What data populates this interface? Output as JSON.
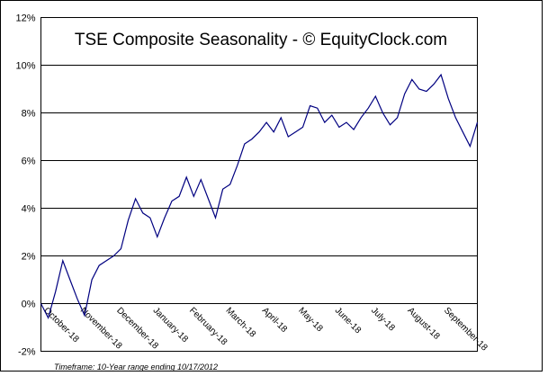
{
  "chart_data": {
    "type": "line",
    "title": "TSE Composite Seasonality - © EquityClock.com",
    "footnote": "Timeframe: 10-Year range ending 10/17/2012",
    "categories": [
      "October-18",
      null,
      null,
      null,
      null,
      "November-18",
      null,
      null,
      null,
      null,
      "December-18",
      null,
      null,
      null,
      null,
      "January-18",
      null,
      null,
      null,
      null,
      "February-18",
      null,
      null,
      null,
      null,
      "March-18",
      null,
      null,
      null,
      null,
      "April-18",
      null,
      null,
      null,
      null,
      "May-18",
      null,
      null,
      null,
      null,
      "June-18",
      null,
      null,
      null,
      null,
      "July-18",
      null,
      null,
      null,
      null,
      "August-18",
      null,
      null,
      null,
      null,
      "September-18",
      null,
      null,
      null,
      null,
      null
    ],
    "series": [
      {
        "color": "#000080",
        "values": [
          0,
          -0.6,
          0.5,
          1.8,
          1.0,
          0.2,
          -0.5,
          1.0,
          1.6,
          1.8,
          2.0,
          2.3,
          3.5,
          4.4,
          3.8,
          3.6,
          2.8,
          3.6,
          4.3,
          4.5,
          5.3,
          4.5,
          5.2,
          4.4,
          3.6,
          4.8,
          5.0,
          5.8,
          6.7,
          6.9,
          7.2,
          7.6,
          7.2,
          7.8,
          7.0,
          7.2,
          7.4,
          8.3,
          8.2,
          7.6,
          7.9,
          7.4,
          7.6,
          7.3,
          7.8,
          8.2,
          8.7,
          8.0,
          7.5,
          7.8,
          8.8,
          9.4,
          9.0,
          8.9,
          9.2,
          9.6,
          8.6,
          7.8,
          7.2,
          6.6,
          7.6
        ]
      }
    ],
    "ylim": [
      -2,
      12
    ],
    "yticks": [
      {
        "value": -2,
        "label": "-2%"
      },
      {
        "value": 0,
        "label": "0%"
      },
      {
        "value": 2,
        "label": "2%"
      },
      {
        "value": 4,
        "label": "4%"
      },
      {
        "value": 6,
        "label": "6%"
      },
      {
        "value": 8,
        "label": "8%"
      },
      {
        "value": 10,
        "label": "10%"
      },
      {
        "value": 12,
        "label": "12%"
      }
    ],
    "grid": true
  }
}
